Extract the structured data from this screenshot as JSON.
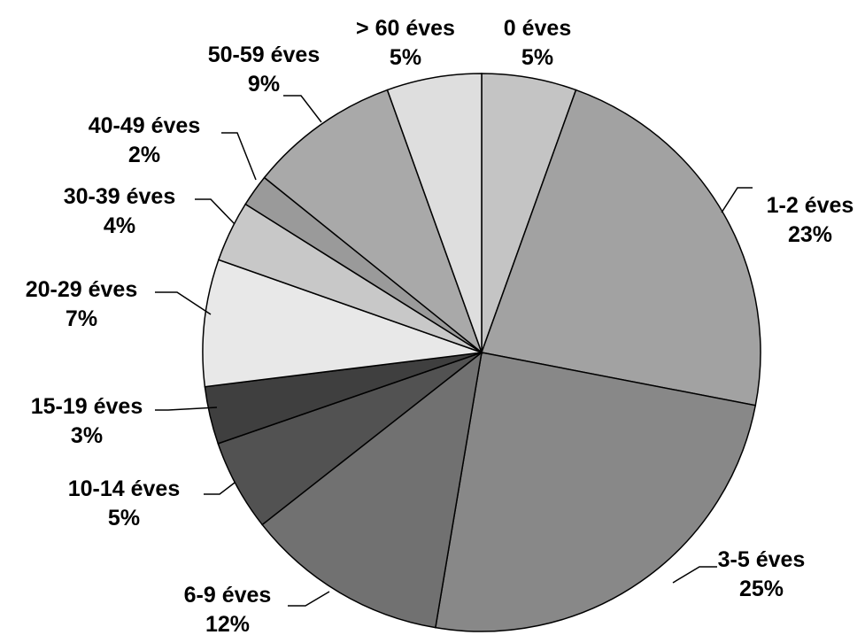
{
  "chart_data": {
    "type": "pie",
    "start_angle_deg": 0,
    "direction": "clockwise",
    "slices": [
      {
        "label": "0 éves",
        "pct_label": "5%",
        "value": 5.6,
        "color": "#c4c4c4"
      },
      {
        "label": "1-2 éves",
        "pct_label": "23%",
        "value": 23.0,
        "color": "#a2a2a2"
      },
      {
        "label": "3-5 éves",
        "pct_label": "25%",
        "value": 25.1,
        "color": "#888888"
      },
      {
        "label": "6-9 éves",
        "pct_label": "12%",
        "value": 12.0,
        "color": "#717171"
      },
      {
        "label": "10-14 éves",
        "pct_label": "5%",
        "value": 5.4,
        "color": "#525252"
      },
      {
        "label": "15-19 éves",
        "pct_label": "3%",
        "value": 3.4,
        "color": "#3f3f3f"
      },
      {
        "label": "20-29 éves",
        "pct_label": "7%",
        "value": 7.5,
        "color": "#e8e8e8"
      },
      {
        "label": "30-39 éves",
        "pct_label": "4%",
        "value": 3.6,
        "color": "#c8c8c8"
      },
      {
        "label": "40-49 éves",
        "pct_label": "2%",
        "value": 1.9,
        "color": "#9a9a9a"
      },
      {
        "label": "50-59 éves",
        "pct_label": "9%",
        "value": 8.9,
        "color": "#a9a9a9"
      },
      {
        "label": "> 60 éves",
        "pct_label": "5%",
        "value": 5.6,
        "color": "#dedede"
      }
    ]
  }
}
